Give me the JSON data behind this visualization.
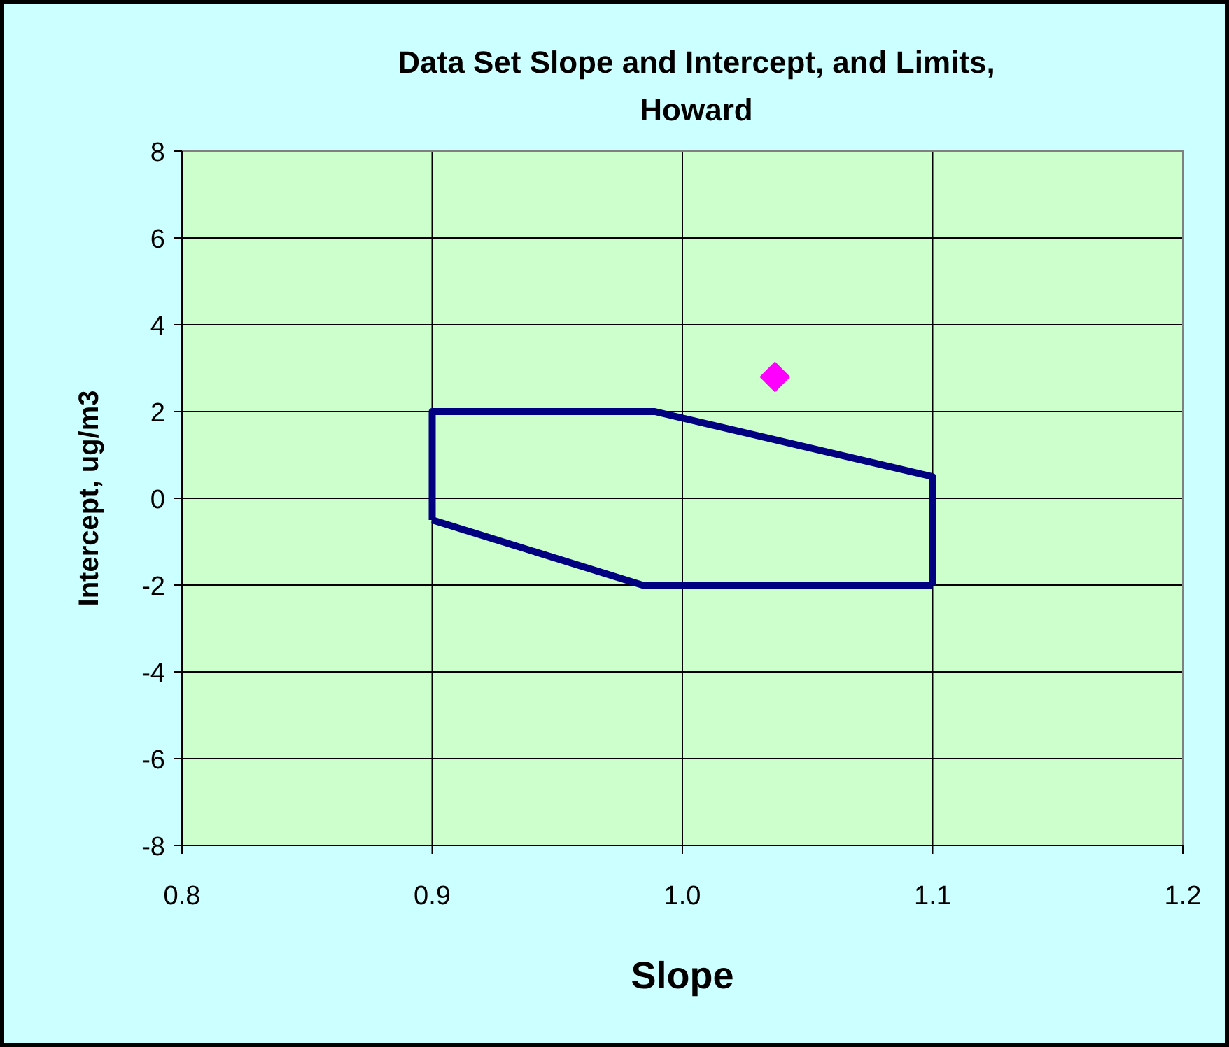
{
  "chart_data": {
    "type": "line",
    "title": "Data Set Slope and Intercept, and Limits, Howard",
    "xlabel": "Slope",
    "ylabel": "Intercept, ug/m3",
    "xlim": [
      0.8,
      1.2
    ],
    "xticks": [
      {
        "value": 0.8,
        "label": "0.8"
      },
      {
        "value": 0.9,
        "label": "0.9"
      },
      {
        "value": 1.0,
        "label": "1.0"
      },
      {
        "value": 1.1,
        "label": "1.1"
      },
      {
        "value": 1.2,
        "label": "1.2"
      }
    ],
    "ylim": [
      -8,
      8
    ],
    "yticks": [
      -8,
      -6,
      -4,
      -2,
      0,
      2,
      4,
      6,
      8
    ],
    "grid": true,
    "series": [
      {
        "color": "#000080",
        "marker": "none",
        "line_style": "solid",
        "x": [
          0.9,
          0.9,
          0.989,
          1.1,
          1.1
        ],
        "values": [
          -0.5,
          2,
          2,
          0.5,
          -2
        ]
      },
      {
        "color": "#000080",
        "marker": "none",
        "line_style": "solid",
        "x": [
          0.9,
          0.984,
          1.1
        ],
        "values": [
          -0.5,
          -2,
          -2
        ]
      },
      {
        "type": "scatter",
        "color": "#ff00ff",
        "marker": "diamond",
        "x": [
          1.037
        ],
        "values": [
          2.8
        ]
      }
    ]
  }
}
